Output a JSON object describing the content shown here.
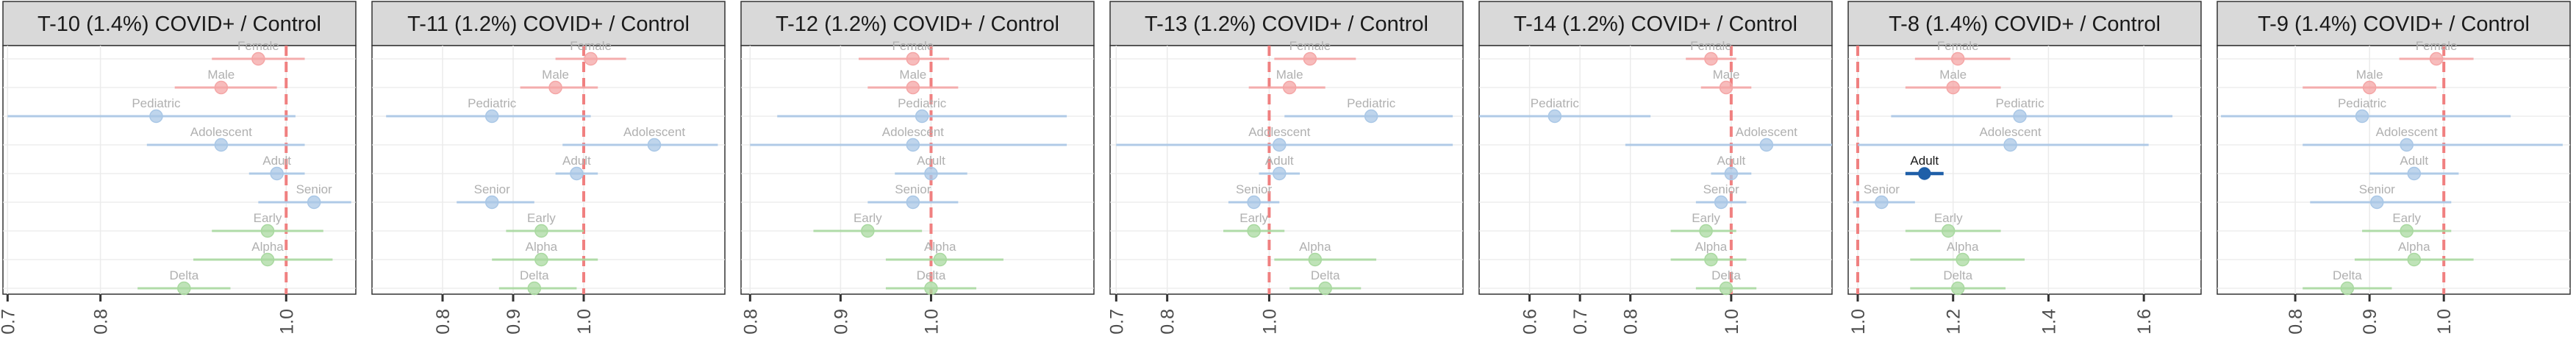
{
  "chart_data": [
    {
      "type": "scatter",
      "title": "T-10 (1.4%) COVID+ / Control",
      "ticks": [
        0.7,
        0.8,
        1.0
      ],
      "xlim": [
        0.695,
        1.075
      ],
      "ref_line": 1.0,
      "points": [
        {
          "label": "Female",
          "group": "sex",
          "est": 0.97,
          "lo": 0.92,
          "hi": 1.02,
          "highlight": false
        },
        {
          "label": "Male",
          "group": "sex",
          "est": 0.93,
          "lo": 0.88,
          "hi": 0.99,
          "highlight": false
        },
        {
          "label": "Pediatric",
          "group": "age",
          "est": 0.86,
          "lo": 0.7,
          "hi": 1.01,
          "highlight": false
        },
        {
          "label": "Adolescent",
          "group": "age",
          "est": 0.93,
          "lo": 0.85,
          "hi": 1.02,
          "highlight": false
        },
        {
          "label": "Adult",
          "group": "age",
          "est": 0.99,
          "lo": 0.96,
          "hi": 1.02,
          "highlight": false
        },
        {
          "label": "Senior",
          "group": "age",
          "est": 1.03,
          "lo": 0.97,
          "hi": 1.07,
          "highlight": false
        },
        {
          "label": "Early",
          "group": "variant",
          "est": 0.98,
          "lo": 0.92,
          "hi": 1.04,
          "highlight": false
        },
        {
          "label": "Alpha",
          "group": "variant",
          "est": 0.98,
          "lo": 0.9,
          "hi": 1.05,
          "highlight": false
        },
        {
          "label": "Delta",
          "group": "variant",
          "est": 0.89,
          "lo": 0.84,
          "hi": 0.94,
          "highlight": false
        }
      ]
    },
    {
      "type": "scatter",
      "title": "T-11 (1.2%) COVID+ / Control",
      "ticks": [
        0.8,
        0.9,
        1.0
      ],
      "xlim": [
        0.7,
        1.2
      ],
      "ref_line": 1.0,
      "points": [
        {
          "label": "Female",
          "group": "sex",
          "est": 1.01,
          "lo": 0.96,
          "hi": 1.06,
          "highlight": false
        },
        {
          "label": "Male",
          "group": "sex",
          "est": 0.96,
          "lo": 0.91,
          "hi": 1.02,
          "highlight": false
        },
        {
          "label": "Pediatric",
          "group": "age",
          "est": 0.87,
          "lo": 0.72,
          "hi": 1.01,
          "highlight": false
        },
        {
          "label": "Adolescent",
          "group": "age",
          "est": 1.1,
          "lo": 0.97,
          "hi": 1.19,
          "highlight": false
        },
        {
          "label": "Adult",
          "group": "age",
          "est": 0.99,
          "lo": 0.96,
          "hi": 1.02,
          "highlight": false
        },
        {
          "label": "Senior",
          "group": "age",
          "est": 0.87,
          "lo": 0.82,
          "hi": 0.93,
          "highlight": false
        },
        {
          "label": "Early",
          "group": "variant",
          "est": 0.94,
          "lo": 0.89,
          "hi": 1.0,
          "highlight": false
        },
        {
          "label": "Alpha",
          "group": "variant",
          "est": 0.94,
          "lo": 0.87,
          "hi": 1.02,
          "highlight": false
        },
        {
          "label": "Delta",
          "group": "variant",
          "est": 0.93,
          "lo": 0.88,
          "hi": 0.99,
          "highlight": false
        }
      ]
    },
    {
      "type": "scatter",
      "title": "T-12 (1.2%) COVID+ / Control",
      "ticks": [
        0.8,
        0.9,
        1.0
      ],
      "xlim": [
        0.79,
        1.18
      ],
      "ref_line": 1.0,
      "points": [
        {
          "label": "Female",
          "group": "sex",
          "est": 0.98,
          "lo": 0.92,
          "hi": 1.02,
          "highlight": false
        },
        {
          "label": "Male",
          "group": "sex",
          "est": 0.98,
          "lo": 0.93,
          "hi": 1.03,
          "highlight": false
        },
        {
          "label": "Pediatric",
          "group": "age",
          "est": 0.99,
          "lo": 0.83,
          "hi": 1.15,
          "highlight": false
        },
        {
          "label": "Adolescent",
          "group": "age",
          "est": 0.98,
          "lo": 0.8,
          "hi": 1.15,
          "highlight": false
        },
        {
          "label": "Adult",
          "group": "age",
          "est": 1.0,
          "lo": 0.96,
          "hi": 1.04,
          "highlight": false
        },
        {
          "label": "Senior",
          "group": "age",
          "est": 0.98,
          "lo": 0.93,
          "hi": 1.03,
          "highlight": false
        },
        {
          "label": "Early",
          "group": "variant",
          "est": 0.93,
          "lo": 0.87,
          "hi": 0.99,
          "highlight": false
        },
        {
          "label": "Alpha",
          "group": "variant",
          "est": 1.01,
          "lo": 0.95,
          "hi": 1.08,
          "highlight": false
        },
        {
          "label": "Delta",
          "group": "variant",
          "est": 1.0,
          "lo": 0.95,
          "hi": 1.05,
          "highlight": false
        }
      ]
    },
    {
      "type": "scatter",
      "title": "T-13 (1.2%) COVID+ / Control",
      "ticks": [
        0.7,
        0.8,
        1.0
      ],
      "xlim": [
        0.688,
        1.38
      ],
      "ref_line": 1.0,
      "points": [
        {
          "label": "Female",
          "group": "sex",
          "est": 1.08,
          "lo": 1.01,
          "hi": 1.17,
          "highlight": false
        },
        {
          "label": "Male",
          "group": "sex",
          "est": 1.04,
          "lo": 0.96,
          "hi": 1.11,
          "highlight": false
        },
        {
          "label": "Pediatric",
          "group": "age",
          "est": 1.2,
          "lo": 1.03,
          "hi": 1.36,
          "highlight": false
        },
        {
          "label": "Adolescent",
          "group": "age",
          "est": 1.02,
          "lo": 0.7,
          "hi": 1.36,
          "highlight": false
        },
        {
          "label": "Adult",
          "group": "age",
          "est": 1.02,
          "lo": 0.98,
          "hi": 1.06,
          "highlight": false
        },
        {
          "label": "Senior",
          "group": "age",
          "est": 0.97,
          "lo": 0.92,
          "hi": 1.02,
          "highlight": false
        },
        {
          "label": "Early",
          "group": "variant",
          "est": 0.97,
          "lo": 0.91,
          "hi": 1.03,
          "highlight": false
        },
        {
          "label": "Alpha",
          "group": "variant",
          "est": 1.09,
          "lo": 1.01,
          "hi": 1.21,
          "highlight": false
        },
        {
          "label": "Delta",
          "group": "variant",
          "est": 1.11,
          "lo": 1.04,
          "hi": 1.18,
          "highlight": false
        }
      ]
    },
    {
      "type": "scatter",
      "title": "T-14 (1.2%) COVID+ / Control",
      "ticks": [
        0.6,
        0.7,
        0.8,
        1.0
      ],
      "xlim": [
        0.5,
        1.2
      ],
      "ref_line": 1.0,
      "points": [
        {
          "label": "Female",
          "group": "sex",
          "est": 0.96,
          "lo": 0.91,
          "hi": 1.01,
          "highlight": false
        },
        {
          "label": "Male",
          "group": "sex",
          "est": 0.99,
          "lo": 0.94,
          "hi": 1.04,
          "highlight": false
        },
        {
          "label": "Pediatric",
          "group": "age",
          "est": 0.65,
          "lo": 0.5,
          "hi": 0.84,
          "highlight": false
        },
        {
          "label": "Adolescent",
          "group": "age",
          "est": 1.07,
          "lo": 0.79,
          "hi": 1.2,
          "highlight": false
        },
        {
          "label": "Adult",
          "group": "age",
          "est": 1.0,
          "lo": 0.96,
          "hi": 1.04,
          "highlight": false
        },
        {
          "label": "Senior",
          "group": "age",
          "est": 0.98,
          "lo": 0.93,
          "hi": 1.03,
          "highlight": false
        },
        {
          "label": "Early",
          "group": "variant",
          "est": 0.95,
          "lo": 0.88,
          "hi": 1.01,
          "highlight": false
        },
        {
          "label": "Alpha",
          "group": "variant",
          "est": 0.96,
          "lo": 0.88,
          "hi": 1.03,
          "highlight": false
        },
        {
          "label": "Delta",
          "group": "variant",
          "est": 0.99,
          "lo": 0.93,
          "hi": 1.05,
          "highlight": false
        }
      ]
    },
    {
      "type": "scatter",
      "title": "T-8 (1.4%) COVID+ / Control",
      "ticks": [
        1.0,
        1.2,
        1.4,
        1.6
      ],
      "xlim": [
        0.98,
        1.72
      ],
      "ref_line": 1.0,
      "points": [
        {
          "label": "Female",
          "group": "sex",
          "est": 1.21,
          "lo": 1.12,
          "hi": 1.32,
          "highlight": false
        },
        {
          "label": "Male",
          "group": "sex",
          "est": 1.2,
          "lo": 1.1,
          "hi": 1.3,
          "highlight": false
        },
        {
          "label": "Pediatric",
          "group": "age",
          "est": 1.34,
          "lo": 1.07,
          "hi": 1.66,
          "highlight": false
        },
        {
          "label": "Adolescent",
          "group": "age",
          "est": 1.32,
          "lo": 1.0,
          "hi": 1.61,
          "highlight": false
        },
        {
          "label": "Adult",
          "group": "age",
          "est": 1.14,
          "lo": 1.1,
          "hi": 1.18,
          "highlight": true
        },
        {
          "label": "Senior",
          "group": "age",
          "est": 1.05,
          "lo": 0.99,
          "hi": 1.12,
          "highlight": false
        },
        {
          "label": "Early",
          "group": "variant",
          "est": 1.19,
          "lo": 1.1,
          "hi": 1.3,
          "highlight": false
        },
        {
          "label": "Alpha",
          "group": "variant",
          "est": 1.22,
          "lo": 1.11,
          "hi": 1.35,
          "highlight": false
        },
        {
          "label": "Delta",
          "group": "variant",
          "est": 1.21,
          "lo": 1.11,
          "hi": 1.31,
          "highlight": false
        }
      ]
    },
    {
      "type": "scatter",
      "title": "T-9 (1.4%) COVID+ / Control",
      "ticks": [
        0.8,
        0.9,
        1.0
      ],
      "xlim": [
        0.695,
        1.17
      ],
      "ref_line": 1.0,
      "points": [
        {
          "label": "Female",
          "group": "sex",
          "est": 0.99,
          "lo": 0.94,
          "hi": 1.04,
          "highlight": false
        },
        {
          "label": "Male",
          "group": "sex",
          "est": 0.9,
          "lo": 0.81,
          "hi": 0.99,
          "highlight": false
        },
        {
          "label": "Pediatric",
          "group": "age",
          "est": 0.89,
          "lo": 0.7,
          "hi": 1.09,
          "highlight": false
        },
        {
          "label": "Adolescent",
          "group": "age",
          "est": 0.95,
          "lo": 0.81,
          "hi": 1.16,
          "highlight": false
        },
        {
          "label": "Adult",
          "group": "age",
          "est": 0.96,
          "lo": 0.9,
          "hi": 1.02,
          "highlight": false
        },
        {
          "label": "Senior",
          "group": "age",
          "est": 0.91,
          "lo": 0.82,
          "hi": 1.01,
          "highlight": false
        },
        {
          "label": "Early",
          "group": "variant",
          "est": 0.95,
          "lo": 0.89,
          "hi": 1.01,
          "highlight": false
        },
        {
          "label": "Alpha",
          "group": "variant",
          "est": 0.96,
          "lo": 0.88,
          "hi": 1.04,
          "highlight": false
        },
        {
          "label": "Delta",
          "group": "variant",
          "est": 0.87,
          "lo": 0.81,
          "hi": 0.93,
          "highlight": false
        }
      ]
    }
  ],
  "colors": {
    "sex": "#f4a6a6",
    "age": "#a9c7e6",
    "variant": "#a9d9a0",
    "highlight": "#1f5fa8",
    "ref_line": "#f08080",
    "strip_bg": "#d9d9d9",
    "grid": "#ebebeb",
    "label": "#b0b0b0"
  }
}
